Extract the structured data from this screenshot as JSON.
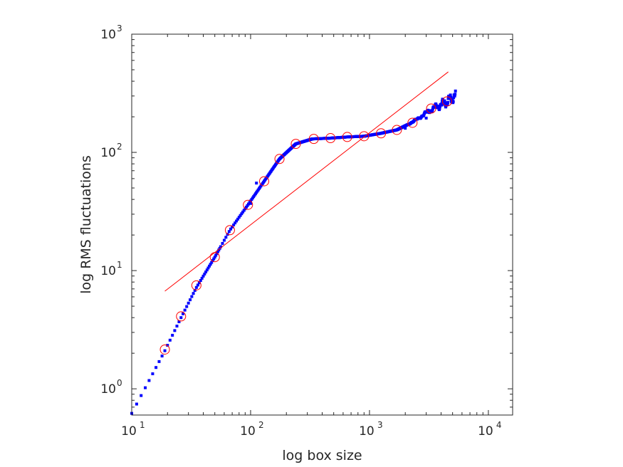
{
  "chart_data": {
    "type": "scatter",
    "title": "",
    "xlabel": "log box size",
    "ylabel": "log RMS fluctuations",
    "xscale": "log",
    "yscale": "log",
    "xlim": [
      10,
      16000
    ],
    "ylim": [
      0.6,
      1000
    ],
    "grid": false,
    "x_ticks": [
      {
        "base": "10",
        "exp": "1",
        "value": 10
      },
      {
        "base": "10",
        "exp": "2",
        "value": 100
      },
      {
        "base": "10",
        "exp": "3",
        "value": 1000
      },
      {
        "base": "10",
        "exp": "4",
        "value": 10000
      }
    ],
    "y_ticks": [
      {
        "base": "10",
        "exp": "0",
        "value": 1
      },
      {
        "base": "10",
        "exp": "1",
        "value": 10
      },
      {
        "base": "10",
        "exp": "2",
        "value": 100
      },
      {
        "base": "10",
        "exp": "3",
        "value": 1000
      }
    ],
    "series": [
      {
        "marker": "square",
        "color": "#0000ff",
        "curve_anchors": [
          [
            10,
            0.62
          ],
          [
            19,
            2.1
          ],
          [
            26,
            4.0
          ],
          [
            35,
            7.2
          ],
          [
            50,
            13
          ],
          [
            67,
            22
          ],
          [
            95,
            36
          ],
          [
            130,
            57
          ],
          [
            175,
            88
          ],
          [
            240,
            118
          ],
          [
            330,
            130
          ],
          [
            470,
            132
          ],
          [
            650,
            135
          ],
          [
            900,
            137
          ],
          [
            1250,
            145
          ],
          [
            1700,
            155
          ],
          [
            2300,
            180
          ],
          [
            3300,
            230
          ],
          [
            4500,
            270
          ],
          [
            5300,
            300
          ]
        ],
        "outliers": [
          [
            100,
            37
          ],
          [
            112,
            55
          ],
          [
            2000,
            160
          ],
          [
            3000,
            195
          ],
          [
            3800,
            240
          ],
          [
            4200,
            255
          ]
        ]
      },
      {
        "marker": "circle",
        "color": "#ff0000",
        "points": [
          [
            19,
            2.15
          ],
          [
            26,
            4.1
          ],
          [
            35,
            7.5
          ],
          [
            50,
            13
          ],
          [
            67,
            22
          ],
          [
            95,
            36
          ],
          [
            130,
            57
          ],
          [
            175,
            88
          ],
          [
            240,
            118
          ],
          [
            340,
            130
          ],
          [
            470,
            132
          ],
          [
            650,
            135
          ],
          [
            900,
            137
          ],
          [
            1250,
            145
          ],
          [
            1700,
            155
          ],
          [
            2300,
            178
          ],
          [
            3300,
            235
          ],
          [
            4500,
            270
          ]
        ]
      },
      {
        "marker": "line",
        "color": "#ff0000",
        "points": [
          [
            19,
            6.7
          ],
          [
            4600,
            480
          ]
        ]
      }
    ]
  }
}
